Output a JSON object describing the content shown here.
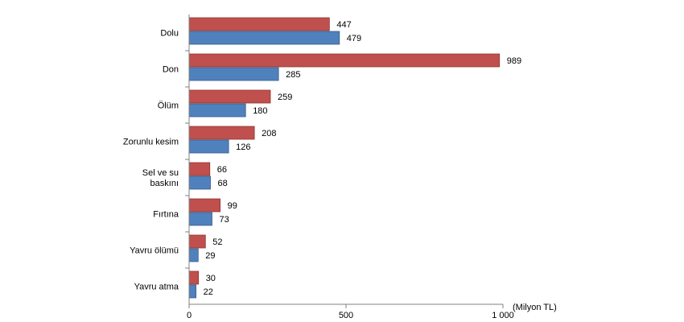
{
  "chart_data": {
    "type": "bar",
    "orientation": "horizontal",
    "categories": [
      [
        "Dolu"
      ],
      [
        "Don"
      ],
      [
        "Ölüm"
      ],
      [
        "Zorunlu kesim"
      ],
      [
        "Sel ve su",
        "baskını"
      ],
      [
        "Fırtına"
      ],
      [
        "Yavru ölümü"
      ],
      [
        "Yavru atma"
      ]
    ],
    "series": [
      {
        "color": "#c0504d",
        "values": [
          447,
          989,
          259,
          208,
          66,
          99,
          52,
          30
        ]
      },
      {
        "color": "#4f81bd",
        "values": [
          479,
          285,
          180,
          126,
          68,
          73,
          29,
          22
        ]
      }
    ],
    "xlim": [
      0,
      1000
    ],
    "xticks": [
      0,
      500,
      1000
    ],
    "xtick_labels": [
      "0",
      "500",
      "1 000"
    ],
    "unit_label": "(Milyon TL)",
    "grid": false,
    "legend": "none"
  }
}
